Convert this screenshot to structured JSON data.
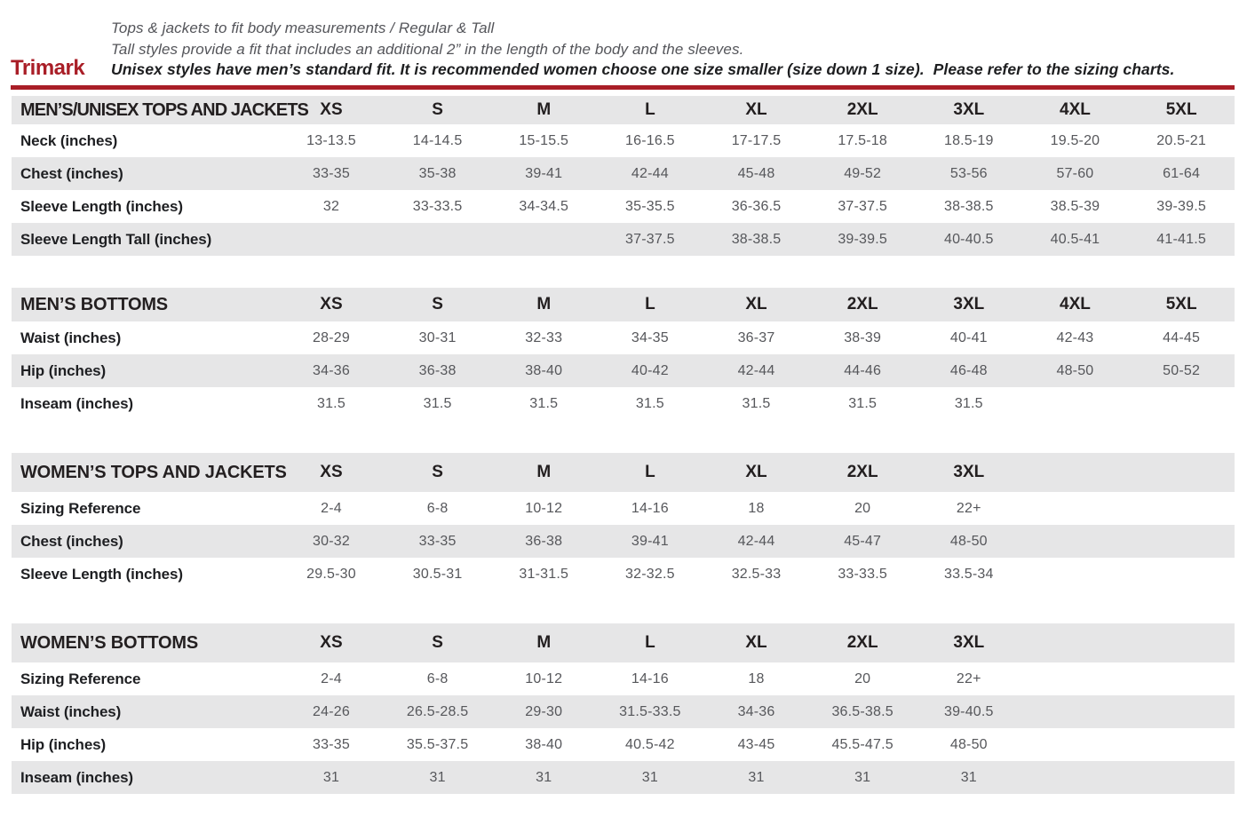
{
  "brand": {
    "name": "Trimark"
  },
  "notes": {
    "line1": "Tops & jackets to fit body measurements / Regular & Tall",
    "line2": "Tall styles provide a fit that includes an additional 2” in the length of the body and the sleeves.",
    "line3": "Unisex styles have men’s standard fit. It is recommended women choose one size smaller (size down 1 size).  Please refer to the sizing charts."
  },
  "colors": {
    "accent_red": "#a91e27",
    "band_gray": "#e6e6e7",
    "label_black": "#1e1f22",
    "value_gray": "#56575b"
  },
  "tables": [
    {
      "title": "MEN’S/UNISEX TOPS AND JACKETS",
      "sizes": [
        "XS",
        "S",
        "M",
        "L",
        "XL",
        "2XL",
        "3XL",
        "4XL",
        "5XL"
      ],
      "rows": [
        {
          "label": "Neck (inches)",
          "values": [
            "13-13.5",
            "14-14.5",
            "15-15.5",
            "16-16.5",
            "17-17.5",
            "17.5-18",
            "18.5-19",
            "19.5-20",
            "20.5-21"
          ]
        },
        {
          "label": "Chest (inches)",
          "values": [
            "33-35",
            "35-38",
            "39-41",
            "42-44",
            "45-48",
            "49-52",
            "53-56",
            "57-60",
            "61-64"
          ]
        },
        {
          "label": "Sleeve Length (inches)",
          "values": [
            "32",
            "33-33.5",
            "34-34.5",
            "35-35.5",
            "36-36.5",
            "37-37.5",
            "38-38.5",
            "38.5-39",
            "39-39.5"
          ]
        },
        {
          "label": "Sleeve Length Tall (inches)",
          "values": [
            "",
            "",
            "",
            "37-37.5",
            "38-38.5",
            "39-39.5",
            "40-40.5",
            "40.5-41",
            "41-41.5"
          ]
        }
      ]
    },
    {
      "title": "MEN’S BOTTOMS",
      "sizes": [
        "XS",
        "S",
        "M",
        "L",
        "XL",
        "2XL",
        "3XL",
        "4XL",
        "5XL"
      ],
      "rows": [
        {
          "label": "Waist (inches)",
          "values": [
            "28-29",
            "30-31",
            "32-33",
            "34-35",
            "36-37",
            "38-39",
            "40-41",
            "42-43",
            "44-45"
          ]
        },
        {
          "label": "Hip (inches)",
          "values": [
            "34-36",
            "36-38",
            "38-40",
            "40-42",
            "42-44",
            "44-46",
            "46-48",
            "48-50",
            "50-52"
          ]
        },
        {
          "label": "Inseam (inches)",
          "values": [
            "31.5",
            "31.5",
            "31.5",
            "31.5",
            "31.5",
            "31.5",
            "31.5",
            "",
            ""
          ]
        }
      ]
    },
    {
      "title": "WOMEN’S TOPS AND JACKETS",
      "sizes": [
        "XS",
        "S",
        "M",
        "L",
        "XL",
        "2XL",
        "3XL",
        "",
        ""
      ],
      "rows": [
        {
          "label": "Sizing Reference",
          "values": [
            "2-4",
            "6-8",
            "10-12",
            "14-16",
            "18",
            "20",
            "22+",
            "",
            ""
          ]
        },
        {
          "label": "Chest (inches)",
          "values": [
            "30-32",
            "33-35",
            "36-38",
            "39-41",
            "42-44",
            "45-47",
            "48-50",
            "",
            ""
          ]
        },
        {
          "label": "Sleeve Length (inches)",
          "values": [
            "29.5-30",
            "30.5-31",
            "31-31.5",
            "32-32.5",
            "32.5-33",
            "33-33.5",
            "33.5-34",
            "",
            ""
          ]
        }
      ]
    },
    {
      "title": "WOMEN’S BOTTOMS",
      "sizes": [
        "XS",
        "S",
        "M",
        "L",
        "XL",
        "2XL",
        "3XL",
        "",
        ""
      ],
      "rows": [
        {
          "label": "Sizing Reference",
          "values": [
            "2-4",
            "6-8",
            "10-12",
            "14-16",
            "18",
            "20",
            "22+",
            "",
            ""
          ]
        },
        {
          "label": "Waist (inches)",
          "values": [
            "24-26",
            "26.5-28.5",
            "29-30",
            "31.5-33.5",
            "34-36",
            "36.5-38.5",
            "39-40.5",
            "",
            ""
          ]
        },
        {
          "label": "Hip (inches)",
          "values": [
            "33-35",
            "35.5-37.5",
            "38-40",
            "40.5-42",
            "43-45",
            "45.5-47.5",
            "48-50",
            "",
            ""
          ]
        },
        {
          "label": "Inseam (inches)",
          "values": [
            "31",
            "31",
            "31",
            "31",
            "31",
            "31",
            "31",
            "",
            ""
          ]
        }
      ]
    }
  ]
}
